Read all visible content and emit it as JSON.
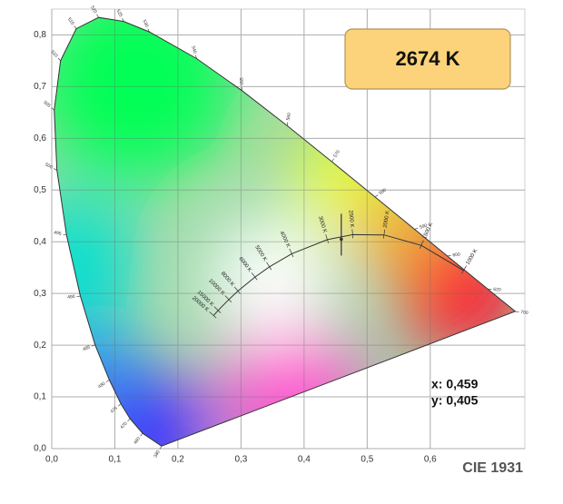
{
  "chart_data": {
    "type": "chromaticity",
    "title": "CIE 1931",
    "badge": "2674 K",
    "xlim": [
      0,
      0.75
    ],
    "ylim": [
      0,
      0.85
    ],
    "xticks": [
      {
        "value": 0,
        "label": "0,0"
      },
      {
        "value": 0.1,
        "label": "0,1"
      },
      {
        "value": 0.2,
        "label": "0,2"
      },
      {
        "value": 0.3,
        "label": "0,3"
      },
      {
        "value": 0.4,
        "label": "0,4"
      },
      {
        "value": 0.5,
        "label": "0,5"
      },
      {
        "value": 0.6,
        "label": "0,6"
      }
    ],
    "yticks": [
      {
        "value": 0,
        "label": "0,0"
      },
      {
        "value": 0.1,
        "label": "0,1"
      },
      {
        "value": 0.2,
        "label": "0,2"
      },
      {
        "value": 0.3,
        "label": "0,3"
      },
      {
        "value": 0.4,
        "label": "0,4"
      },
      {
        "value": 0.5,
        "label": "0,5"
      },
      {
        "value": 0.6,
        "label": "0,6"
      },
      {
        "value": 0.7,
        "label": "0,7"
      },
      {
        "value": 0.8,
        "label": "0,8"
      }
    ],
    "grid": true,
    "point": {
      "x": 0.459,
      "y": 0.405,
      "x_label": "x: 0,459",
      "y_label": "y: 0,405"
    },
    "spectral_locus": {
      "x": [
        0.1741,
        0.144,
        0.1241,
        0.1096,
        0.0913,
        0.0687,
        0.0454,
        0.0235,
        0.0082,
        0.0039,
        0.0139,
        0.0389,
        0.0743,
        0.1142,
        0.1547,
        0.2296,
        0.3016,
        0.3731,
        0.4441,
        0.5125,
        0.5752,
        0.627,
        0.6915,
        0.7347
      ],
      "y": [
        0.005,
        0.0297,
        0.0578,
        0.0868,
        0.1327,
        0.2007,
        0.295,
        0.4127,
        0.5384,
        0.6548,
        0.7502,
        0.812,
        0.8338,
        0.8262,
        0.8059,
        0.7543,
        0.6923,
        0.6245,
        0.5547,
        0.4866,
        0.4242,
        0.3725,
        0.3083,
        0.2653
      ],
      "labels": [
        "380",
        "460",
        "470",
        "475",
        "480",
        "485",
        "490",
        "495",
        "500",
        "505",
        "510",
        "515",
        "520",
        "525",
        "530",
        "540",
        "550",
        "560",
        "570",
        "580",
        "590",
        "600",
        "620",
        "700"
      ]
    },
    "planckian_locus": {
      "x": [
        0.6528,
        0.5857,
        0.5267,
        0.477,
        0.4369,
        0.3805,
        0.3451,
        0.3221,
        0.2952,
        0.2807,
        0.2637,
        0.2565
      ],
      "y": [
        0.3444,
        0.3931,
        0.4133,
        0.4137,
        0.4041,
        0.3768,
        0.3516,
        0.3318,
        0.3048,
        0.2883,
        0.2673,
        0.2574
      ],
      "labels": [
        "1000 K",
        "1500 K",
        "2000 K",
        "2500 K",
        "3000 K",
        "4000 K",
        "5000 K",
        "6000 K",
        "8000 K",
        "10000 K",
        "15000 K",
        "20000 K"
      ]
    }
  }
}
